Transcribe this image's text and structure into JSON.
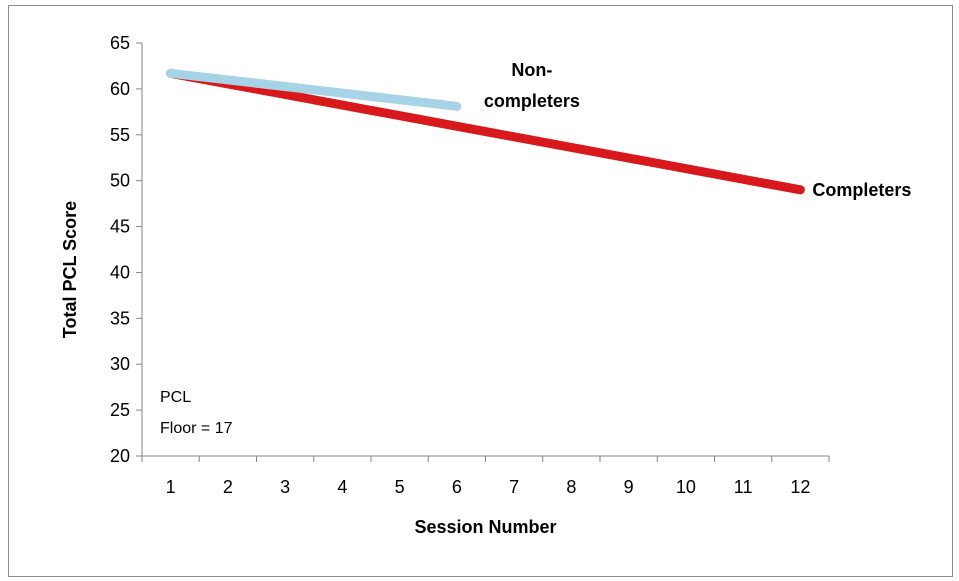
{
  "chart_data": {
    "type": "line",
    "title": "",
    "xlabel": "Session Number",
    "ylabel": "Total PCL Score",
    "x_ticks": [
      1,
      2,
      3,
      4,
      5,
      6,
      7,
      8,
      9,
      10,
      11,
      12
    ],
    "y_ticks": [
      20,
      25,
      30,
      35,
      40,
      45,
      50,
      55,
      60,
      65
    ],
    "xlim": [
      0.5,
      12.5
    ],
    "ylim": [
      20,
      65
    ],
    "grid": false,
    "series": [
      {
        "name": "Completers",
        "color": "#d7191c",
        "x": [
          1,
          12
        ],
        "y": [
          61.7,
          49.0
        ]
      },
      {
        "name": "Non-completers",
        "name_lines": [
          "Non-",
          "completers"
        ],
        "color": "#a6d4e6",
        "x": [
          1,
          6
        ],
        "y": [
          61.7,
          58.1
        ]
      }
    ],
    "annotation_lines": [
      "PCL",
      "Floor = 17"
    ]
  }
}
